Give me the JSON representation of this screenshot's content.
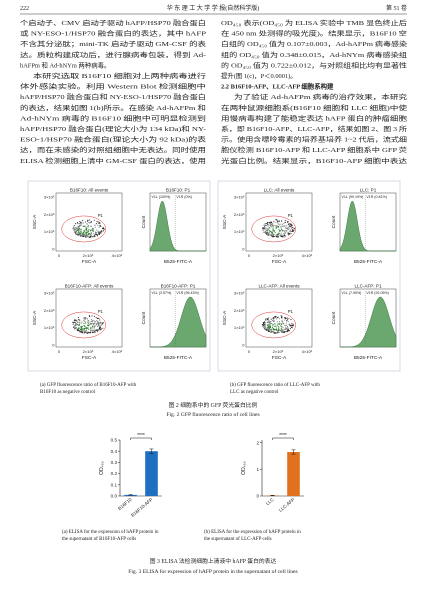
{
  "header": {
    "page": "222",
    "journal": "华 东 理 工 大 学 学 报(自然科学版)",
    "volume": "第 51 卷"
  },
  "body": {
    "left": [
      "个启动子、CMV 启动子驱动 hAFP/HSP70 融合蛋白",
      "或 NY-ESO-1/HSP70 融合蛋白的表达，其中 hAFP",
      "不含其分泌肽；mini-TK 启动子驱动 GM-CSF 的表",
      "达。质粒构建成功后，进行腺病毒包装，得到 Ad-",
      "hAFPm 和 Ad-hNYm 两种病毒。",
      "本研究选取 B16F10 细胞对上两种病毒进行",
      "体外感染实验。利用 Western Blot 检测细胞中",
      "hAFP/HSP70 融合蛋白和 NY-ESO-1/HSP70 融合蛋白",
      "的表达，结果如图 1(b)所示。在感染 Ad-hAFPm 和",
      "Ad-hNYm 病毒的 B16F10 细胞中可明显检测到",
      "hAFP/HSP70 融合蛋白(理论大小为 134 kDa)和 NY-",
      "ESO-1/HSP70 融合蛋白(理论大小为 92 kDa)的表",
      "达，而在未感染的对照组细胞中无表达。同时使用",
      "ELISA 检测细胞上清中 GM-CSF 蛋白的表达，使用"
    ],
    "right_top": [
      "OD₄₅₀ 表示(OD₄₅₀ 为 ELISA 实验中 TMB 显色终止后",
      "在 450 nm 处测得的吸光度)。结果显示，B16F10 空",
      "白组的 OD₄₅₀ 值为 0.107±0.003，Ad-hAFPm 病毒感染",
      "组的 OD₄₅₀ 值为 0.348±0.015，Ad-hNYm 病毒感染组",
      "的 OD₄₅₀ 值为 0.722±0.012，与对照组相比均有显著性",
      "提升(图 1(c)，P＜0.0001)。"
    ],
    "heading": "2.2  B16F10-AFP、LLC-AFP 细胞系构建",
    "right_bottom": [
      "为了验证 Ad-hAFPm 病毒的治疗效果，本研究",
      "在两种鼠源细胞系(B16F10 细胞和 LLC 细胞)中使",
      "用慢病毒构建了能稳定表达 hAFP 蛋白的肿瘤细胞",
      "系，即 B16F10-AFP、LLC-AFP，结果如图 2、图 3 所",
      "示。使用含嘌呤霉素的培养基培养 1~2 代后，流式细",
      "胞仪检测 B16F10-AFP 和 LLC-AFP 细胞系中 GFP 荧",
      "光蛋白比例。结果显示，B16F10-AFP 细胞中表达"
    ]
  },
  "figure2": {
    "dot_yticks": [
      "3×10⁶",
      "2×10⁶",
      "1×10⁶",
      "0"
    ],
    "dot_xticks": [
      "0",
      "2×10⁶",
      "4×10⁶"
    ],
    "dot_y_label": "SSC-A",
    "dot_x_label": "FSC-A",
    "gate": "P1",
    "hist_y_label": "Count",
    "hist_x_label": "B525-FITC-A",
    "panels": [
      {
        "dot_title": "B16F10: All events",
        "hist_title": "B16F10: P1",
        "gates": [
          "V1L (100%)",
          "V1R (0%)"
        ]
      },
      {
        "dot_title": "B16F10-AFP: All events",
        "hist_title": "B16F10-AFP: P1",
        "gates": [
          "V1L (3.57%)",
          "V1R (96.43%)"
        ]
      },
      {
        "dot_title": "LLC: All events",
        "hist_title": "LLC: P1",
        "gates": [
          "V1L (99.19%)",
          "V1R (0.81%)"
        ]
      },
      {
        "dot_title": "LLC-AFP: All events",
        "hist_title": "LLC-AFP: P1",
        "gates": [
          "V1L (7.95%)",
          "V1R (92.05%)"
        ]
      }
    ],
    "captions": [
      [
        "(a) GFP fluorescence ratio of B16F10-AFP with",
        "B16F10 as negative control"
      ],
      [
        "(b) GFP fluorescence ratio of LLC-AFP with",
        "LLC as negative control"
      ]
    ],
    "title_cn": "图 2  细胞系中的 GFP 荧光蛋白比例",
    "title_en": "Fig. 2  GFP fluorescence ratio of cell lines"
  },
  "figure3": {
    "charts": [
      {
        "type": "bar",
        "y_label": "OD₄₅₀",
        "categories": [
          "B16F10",
          "B16F10-AFP"
        ],
        "values": [
          0.01,
          0.4
        ],
        "errors": [
          0.002,
          0.02
        ],
        "color": "#1f6fc0",
        "significance": "****",
        "ylim": [
          0,
          0.5
        ],
        "yticks": [
          {
            "value": 0,
            "label": "0.0"
          },
          0.1,
          0.2,
          0.3,
          0.4,
          0.5
        ],
        "caption": [
          "(a) ELISA for the expression of hAFP protein in",
          "the supernatant of B16F10-AFP cells"
        ]
      },
      {
        "type": "bar",
        "y_label": "OD₄₅₀",
        "categories": [
          "LLC",
          "LLC-AFP"
        ],
        "values": [
          0.02,
          1.65
        ],
        "errors": [
          0.005,
          0.08
        ],
        "color": "#e2711d",
        "significance": "****",
        "ylim": [
          0,
          2.1
        ],
        "yticks": [
          0,
          1,
          2
        ],
        "caption": [
          "(b) ELISA for the expression of hAFP protein in",
          "the supernatant of LLC-AFP cells"
        ]
      }
    ],
    "title_cn": "图 3  ELISA 法检测细胞上清液中 hAFP 蛋白的表达",
    "title_en": "Fig. 3  ELISA for expression of hAFP protein in the supernatant of cell lines"
  }
}
